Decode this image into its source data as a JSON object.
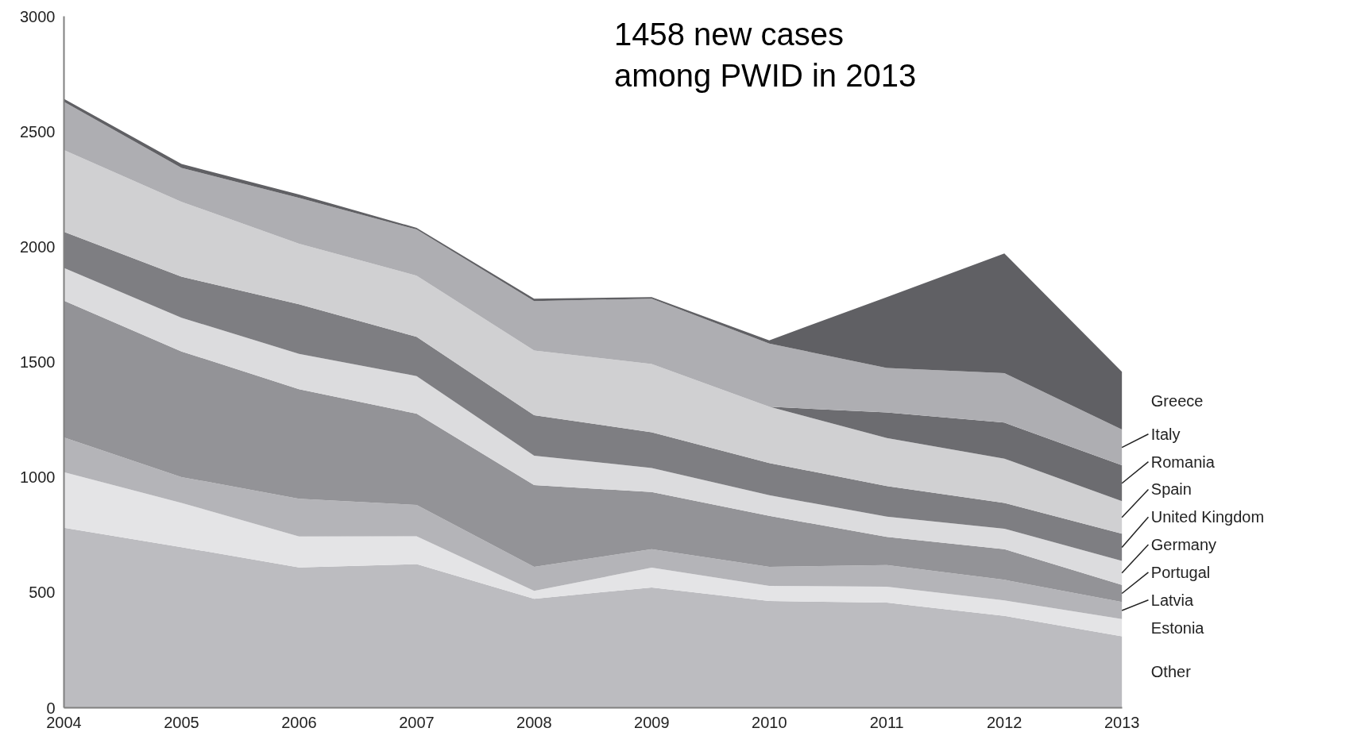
{
  "chart_data": {
    "type": "area",
    "stacked": true,
    "title": "1458 new cases\namong PWID in 2013",
    "x": [
      2004,
      2005,
      2006,
      2007,
      2008,
      2009,
      2010,
      2011,
      2012,
      2013
    ],
    "xlim": [
      2004,
      2013
    ],
    "xticks": [
      2004,
      2005,
      2006,
      2007,
      2008,
      2009,
      2010,
      2011,
      2012,
      2013
    ],
    "ylim": [
      0,
      3000
    ],
    "yticks": [
      0,
      500,
      1000,
      1500,
      2000,
      2500,
      3000
    ],
    "grid": false,
    "legend": false,
    "series": [
      {
        "name": "Other",
        "color": "#bcbcc0",
        "values": [
          781,
          697,
          609,
          623,
          473,
          522,
          463,
          456,
          399,
          310
        ]
      },
      {
        "name": "Estonia",
        "color": "#e4e4e6",
        "values": [
          241,
          192,
          134,
          121,
          34,
          86,
          66,
          69,
          67,
          75
        ]
      },
      {
        "name": "Latvia",
        "color": "#b4b4b8",
        "values": [
          151,
          112,
          164,
          136,
          104,
          80,
          82,
          94,
          89,
          74
        ]
      },
      {
        "name": "Portugal",
        "color": "#939397",
        "values": [
          593,
          545,
          475,
          396,
          355,
          248,
          222,
          122,
          133,
          74
        ]
      },
      {
        "name": "Germany",
        "color": "#dcdcde",
        "values": [
          142,
          146,
          153,
          163,
          128,
          104,
          89,
          88,
          89,
          104
        ]
      },
      {
        "name": "United Kingdom",
        "color": "#7e7e82",
        "values": [
          157,
          178,
          216,
          170,
          175,
          155,
          140,
          133,
          112,
          118
        ]
      },
      {
        "name": "Spain",
        "color": "#d0d0d2",
        "values": [
          355,
          325,
          262,
          266,
          281,
          296,
          244,
          208,
          192,
          141
        ]
      },
      {
        "name": "Romania",
        "color": "#6c6c70",
        "values": [
          0,
          0,
          0,
          0,
          0,
          0,
          0,
          111,
          156,
          156
        ]
      },
      {
        "name": "Italy",
        "color": "#aeaeb2",
        "values": [
          209,
          147,
          199,
          200,
          214,
          284,
          274,
          193,
          215,
          155
        ]
      },
      {
        "name": "Greece",
        "color": "#606064",
        "values": [
          13,
          17,
          15,
          7,
          11,
          7,
          14,
          308,
          519,
          251
        ]
      }
    ]
  }
}
